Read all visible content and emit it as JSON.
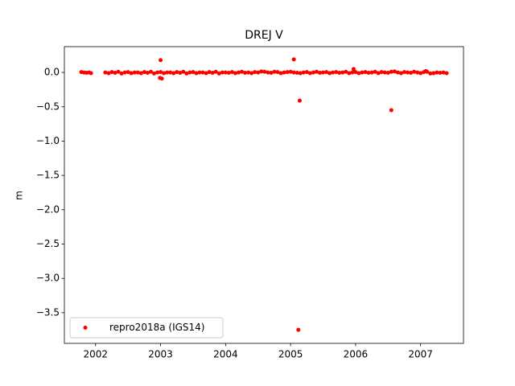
{
  "chart_data": {
    "type": "scatter",
    "title": "DREJ V",
    "y_label": "m",
    "xlim": [
      2001.52,
      2007.66
    ],
    "ylim": [
      -3.947,
      0.376
    ],
    "xticks": [
      2002,
      2003,
      2004,
      2005,
      2006,
      2007
    ],
    "yticks": [
      {
        "value": 0,
        "label": "0.0"
      },
      {
        "value": -0.5,
        "label": "−0.5"
      },
      {
        "value": -1,
        "label": "−1.0"
      },
      {
        "value": -1.5,
        "label": "−1.5"
      },
      {
        "value": -2,
        "label": "−2.0"
      },
      {
        "value": -2.5,
        "label": "−2.5"
      },
      {
        "value": -3,
        "label": "−3.0"
      },
      {
        "value": -3.5,
        "label": "−3.5"
      }
    ],
    "legend": "lower left",
    "series": [
      {
        "name": "repro2018a (IGS14)",
        "color": "#ff0000",
        "x": [
          2001.78,
          2001.82,
          2001.86,
          2001.9,
          2001.93,
          2002.15,
          2002.2,
          2002.25,
          2002.3,
          2002.35,
          2002.4,
          2002.45,
          2002.5,
          2002.55,
          2002.6,
          2002.65,
          2002.7,
          2002.75,
          2002.8,
          2002.85,
          2002.9,
          2002.95,
          2003.0,
          2003.05,
          2003.1,
          2003.15,
          2003.2,
          2003.25,
          2003.3,
          2003.35,
          2003.4,
          2003.45,
          2003.5,
          2003.55,
          2003.6,
          2003.65,
          2003.7,
          2003.75,
          2003.8,
          2003.85,
          2003.9,
          2003.95,
          2004.0,
          2004.05,
          2004.1,
          2004.15,
          2004.2,
          2004.25,
          2004.3,
          2004.35,
          2004.4,
          2004.45,
          2004.5,
          2004.55,
          2004.6,
          2004.65,
          2004.7,
          2004.75,
          2004.8,
          2004.85,
          2004.9,
          2004.95,
          2005.0,
          2005.05,
          2005.1,
          2005.15,
          2005.2,
          2005.25,
          2005.3,
          2005.35,
          2005.4,
          2005.45,
          2005.5,
          2005.55,
          2005.6,
          2005.65,
          2005.7,
          2005.75,
          2005.8,
          2005.85,
          2005.9,
          2005.95,
          2006.0,
          2006.05,
          2006.1,
          2006.15,
          2006.2,
          2006.25,
          2006.3,
          2006.35,
          2006.4,
          2006.45,
          2006.5,
          2006.55,
          2006.6,
          2006.65,
          2006.7,
          2006.75,
          2006.8,
          2006.85,
          2006.9,
          2006.95,
          2007.0,
          2007.05,
          2007.1,
          2007.15,
          2007.2,
          2007.25,
          2007.3,
          2007.35,
          2007.4,
          2003.0,
          2002.99,
          2003.02,
          2005.05,
          2005.14,
          2005.12,
          2005.97,
          2006.55,
          2007.08
        ],
        "values": [
          0.005,
          0,
          -0.005,
          0,
          -0.01,
          0,
          -0.01,
          0.005,
          -0.005,
          0.01,
          -0.015,
          0,
          0.005,
          -0.01,
          0,
          0,
          -0.01,
          0.005,
          -0.005,
          0.01,
          -0.015,
          0,
          0.005,
          -0.01,
          0,
          0,
          -0.01,
          0.005,
          -0.005,
          0.01,
          -0.015,
          0,
          0.005,
          -0.01,
          0,
          0,
          -0.01,
          0.005,
          -0.005,
          0.01,
          -0.015,
          0,
          0,
          -0.005,
          0.005,
          -0.01,
          0,
          0.01,
          -0.005,
          0,
          -0.01,
          0.005,
          0,
          0.015,
          0.01,
          0,
          -0.005,
          0.01,
          0.005,
          -0.01,
          0,
          0.005,
          0.01,
          0,
          -0.005,
          -0.01,
          0,
          0.005,
          -0.01,
          0,
          0.01,
          -0.005,
          0,
          0.005,
          -0.01,
          0,
          0.005,
          -0.005,
          0,
          0.01,
          -0.01,
          0,
          0.005,
          -0.01,
          0,
          0.005,
          -0.005,
          0,
          0.01,
          -0.01,
          0.005,
          0,
          -0.005,
          0.01,
          0.015,
          0,
          -0.01,
          0.005,
          0,
          -0.005,
          0.01,
          0,
          -0.01,
          0.005,
          0.01,
          -0.015,
          -0.01,
          0,
          -0.005,
          0,
          -0.01,
          0.18,
          -0.08,
          -0.09,
          0.19,
          -0.41,
          -3.75,
          0.05,
          -0.55,
          0.02
        ]
      }
    ]
  }
}
